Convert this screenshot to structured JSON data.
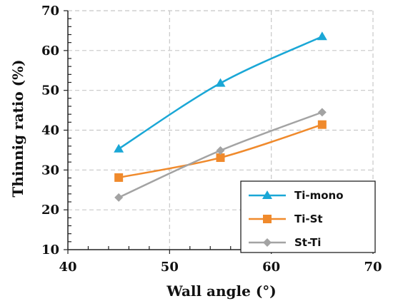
{
  "chart_data": {
    "type": "line",
    "title": "",
    "xlabel": "Wall angle (°)",
    "ylabel": "Thinnig ratio (%)",
    "xlim": [
      40,
      70
    ],
    "ylim": [
      10,
      70
    ],
    "xticks": [
      "40",
      "50",
      "60",
      "70"
    ],
    "yticks": [
      "10",
      "20",
      "30",
      "40",
      "50",
      "60",
      "70"
    ],
    "grid": true,
    "legend_position": "bottom-right",
    "x": [
      45,
      55,
      65
    ],
    "series": [
      {
        "name": "Ti-mono",
        "values": [
          35.3,
          51.8,
          63.5
        ],
        "color": "#1aa7d6",
        "marker": "triangle"
      },
      {
        "name": "Ti-St",
        "values": [
          28.1,
          33.1,
          41.4
        ],
        "color": "#f08a2c",
        "marker": "square"
      },
      {
        "name": "St-Ti",
        "values": [
          23.1,
          34.9,
          44.5
        ],
        "color": "#a3a3a3",
        "marker": "diamond"
      }
    ]
  }
}
